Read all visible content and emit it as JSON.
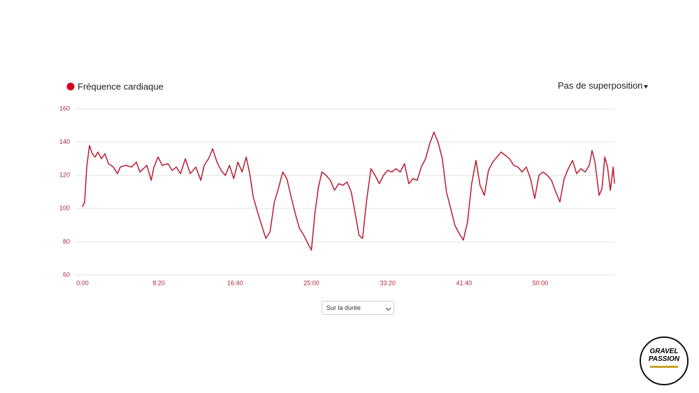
{
  "chart_data": {
    "type": "line",
    "x": [
      0,
      14,
      28,
      46,
      64,
      83,
      101,
      124,
      147,
      170,
      202,
      229,
      248,
      284,
      321,
      353,
      376,
      399,
      422,
      450,
      468,
      495,
      523,
      560,
      587,
      615,
      642,
      674,
      706,
      743,
      775,
      798,
      826,
      853,
      881,
      908,
      936,
      963,
      991,
      1018,
      1046,
      1073,
      1096,
      1119,
      1147,
      1174,
      1202,
      1229,
      1257,
      1284,
      1312,
      1339,
      1367,
      1394,
      1422,
      1450,
      1477,
      1500,
      1523,
      1546,
      1569,
      1596,
      1624,
      1651,
      1679,
      1706,
      1734,
      1761,
      1789,
      1812,
      1835,
      1862,
      1890,
      1917,
      1945,
      1972,
      2000,
      2027,
      2055,
      2082,
      2110,
      2138,
      2165,
      2193,
      2220,
      2248,
      2275,
      2303,
      2330,
      2358,
      2385,
      2413,
      2440,
      2468,
      2495,
      2523,
      2550,
      2578,
      2605,
      2633,
      2660,
      2688,
      2716,
      2743,
      2771,
      2798,
      2826,
      2853,
      2881,
      2908,
      2936,
      2963,
      2991,
      3018,
      3046,
      3073,
      3101,
      3128,
      3156,
      3183,
      3211,
      3238,
      3266,
      3293,
      3321,
      3339,
      3358,
      3385,
      3404,
      3422,
      3440,
      3459,
      3477,
      3486
    ],
    "series": [
      {
        "name": "Fréquence cardiaque",
        "color": "#b81a33",
        "values": [
          101,
          104,
          125,
          138,
          133,
          131,
          134,
          130,
          133,
          127,
          125,
          121,
          125,
          126,
          125,
          128,
          122,
          124,
          126,
          117,
          125,
          131,
          126,
          127,
          123,
          125,
          121,
          130,
          121,
          125,
          117,
          126,
          130,
          136,
          128,
          123,
          120,
          126,
          118,
          128,
          122,
          131,
          121,
          107,
          98,
          90,
          82,
          86,
          104,
          112,
          122,
          118,
          107,
          97,
          88,
          84,
          79,
          75,
          97,
          113,
          122,
          120,
          117,
          111,
          115,
          114,
          116,
          110,
          96,
          84,
          82,
          105,
          124,
          120,
          115,
          120,
          123,
          122,
          124,
          122,
          127,
          115,
          118,
          117,
          125,
          130,
          139,
          146,
          140,
          130,
          110,
          100,
          90,
          85,
          81,
          92,
          115,
          129,
          114,
          108,
          123,
          128,
          131,
          134,
          132,
          130,
          126,
          125,
          122,
          125,
          118,
          106,
          120,
          122,
          120,
          117,
          110,
          104,
          118,
          124,
          129,
          121,
          124,
          122,
          126,
          135,
          128,
          108,
          112,
          131,
          125,
          111,
          125,
          115
        ]
      }
    ],
    "xlim": [
      0,
      3490
    ],
    "xticks": [
      {
        "value": 0,
        "label": "0:00"
      },
      {
        "value": 500,
        "label": "8:20"
      },
      {
        "value": 1000,
        "label": "16:40"
      },
      {
        "value": 1500,
        "label": "25:00"
      },
      {
        "value": 2000,
        "label": "33:20"
      },
      {
        "value": 2500,
        "label": "41:40"
      },
      {
        "value": 3000,
        "label": "50:00"
      }
    ],
    "ylim": [
      60,
      160
    ],
    "yticks": [
      60,
      80,
      100,
      120,
      140,
      160
    ],
    "grid": true
  },
  "ui": {
    "overlay_menu": "Pas de superposition",
    "range_select": "Sur la durée",
    "logo": {
      "line1": "GRAVEL",
      "line2": "PASSION"
    }
  }
}
